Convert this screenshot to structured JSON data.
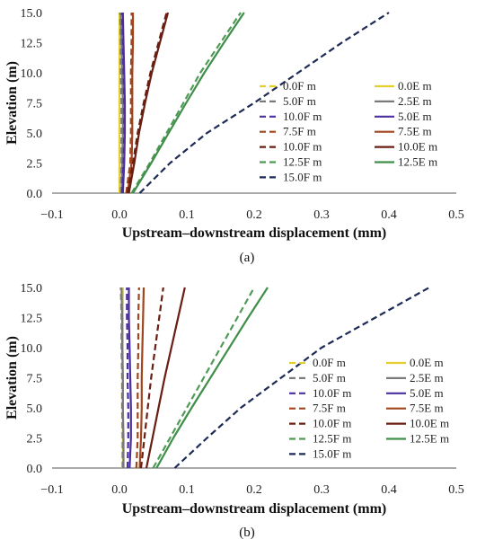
{
  "chart_data": [
    {
      "type": "line",
      "panel_label": "(a)",
      "xlabel": "Upstream–downstream displacement (mm)",
      "ylabel": "Elevation (m)",
      "xlim": [
        -0.1,
        0.5
      ],
      "ylim": [
        0,
        15
      ],
      "xticks": [
        "−0.1",
        "0.0",
        "0.1",
        "0.2",
        "0.3",
        "0.4",
        "0.5"
      ],
      "yticks": [
        "0.0",
        "2.5",
        "5.0",
        "7.5",
        "10.0",
        "12.5",
        "15.0"
      ],
      "legend_position": "right",
      "series": [
        {
          "name": "0.0F m",
          "color": "#e4cf2e",
          "dash": "dashed",
          "x": [
            0.0,
            0.0,
            0.0,
            0.0,
            0.0,
            0.0,
            0.0
          ],
          "y": [
            0,
            2.5,
            5,
            7.5,
            10,
            12.5,
            15
          ]
        },
        {
          "name": "0.0E m",
          "color": "#e4cf2e",
          "dash": "solid",
          "x": [
            0.0,
            0.0,
            0.0,
            0.0,
            0.0,
            0.0,
            0.0
          ],
          "y": [
            0,
            2.5,
            5,
            7.5,
            10,
            12.5,
            15
          ]
        },
        {
          "name": "5.0F m",
          "color": "#7a7a7a",
          "dash": "dashed",
          "x": [
            0.002,
            0.003,
            0.003,
            0.003,
            0.002,
            0.002,
            0.001
          ],
          "y": [
            0,
            2.5,
            5,
            7.5,
            10,
            12.5,
            15
          ]
        },
        {
          "name": "2.5E m",
          "color": "#7a7a7a",
          "dash": "solid",
          "x": [
            0.003,
            0.004,
            0.005,
            0.005,
            0.004,
            0.003,
            0.002
          ],
          "y": [
            0,
            2.5,
            5,
            7.5,
            10,
            12.5,
            15
          ]
        },
        {
          "name": "10.0F m",
          "color": "#4b2f9e",
          "dash": "dashed",
          "x": [
            0.004,
            0.006,
            0.007,
            0.007,
            0.006,
            0.005,
            0.004
          ],
          "y": [
            0,
            2.5,
            5,
            7.5,
            10,
            12.5,
            15
          ]
        },
        {
          "name": "5.0E m",
          "color": "#4b2f9e",
          "dash": "solid",
          "x": [
            0.005,
            0.007,
            0.008,
            0.008,
            0.007,
            0.006,
            0.005
          ],
          "y": [
            0,
            2.5,
            5,
            7.5,
            10,
            12.5,
            15
          ]
        },
        {
          "name": "7.5F m",
          "color": "#a0451d",
          "dash": "dashed",
          "x": [
            0.01,
            0.016,
            0.017,
            0.017,
            0.017,
            0.018,
            0.018
          ],
          "y": [
            0,
            2.5,
            5,
            7.5,
            10,
            12.5,
            15
          ]
        },
        {
          "name": "7.5E m",
          "color": "#a0451d",
          "dash": "solid",
          "x": [
            0.012,
            0.018,
            0.019,
            0.019,
            0.019,
            0.02,
            0.02
          ],
          "y": [
            0,
            2.5,
            5,
            7.5,
            10,
            12.5,
            15
          ]
        },
        {
          "name": "10.0F m",
          "color": "#6a1e12",
          "dash": "dashed",
          "x": [
            0.012,
            0.02,
            0.027,
            0.036,
            0.046,
            0.058,
            0.07
          ],
          "y": [
            0,
            2.5,
            5,
            7.5,
            10,
            12.5,
            15
          ]
        },
        {
          "name": "10.0E m",
          "color": "#6a1e12",
          "dash": "solid",
          "x": [
            0.014,
            0.022,
            0.029,
            0.038,
            0.048,
            0.06,
            0.072
          ],
          "y": [
            0,
            2.5,
            5,
            7.5,
            10,
            12.5,
            15
          ]
        },
        {
          "name": "12.5F m",
          "color": "#4f9a55",
          "dash": "dashed",
          "x": [
            0.018,
            0.045,
            0.07,
            0.095,
            0.12,
            0.15,
            0.18
          ],
          "y": [
            0,
            2.5,
            5,
            7.5,
            10,
            12.5,
            15
          ]
        },
        {
          "name": "12.5E m",
          "color": "#3f8f4a",
          "dash": "solid",
          "x": [
            0.02,
            0.047,
            0.073,
            0.099,
            0.126,
            0.155,
            0.185
          ],
          "y": [
            0,
            2.5,
            5,
            7.5,
            10,
            12.5,
            15
          ]
        },
        {
          "name": "15.0F m",
          "color": "#1c2a55",
          "dash": "dashed",
          "x": [
            0.03,
            0.075,
            0.13,
            0.2,
            0.265,
            0.33,
            0.4
          ],
          "y": [
            0,
            2.5,
            5,
            7.5,
            10,
            12.5,
            15
          ]
        }
      ]
    },
    {
      "type": "line",
      "panel_label": "(b)",
      "xlabel": "Upstream–downstream displacement (mm)",
      "ylabel": "Elevation (m)",
      "xlim": [
        -0.1,
        0.5
      ],
      "ylim": [
        0,
        15
      ],
      "xticks": [
        "−0.1",
        "0.0",
        "0.1",
        "0.2",
        "0.3",
        "0.4",
        "0.5"
      ],
      "yticks": [
        "0.0",
        "2.5",
        "5.0",
        "7.5",
        "10.0",
        "12.5",
        "15.0"
      ],
      "legend_position": "right",
      "series": [
        {
          "name": "0.0F m",
          "color": "#e4cf2e",
          "dash": "dashed",
          "x": [
            0.004,
            0.004,
            0.004,
            0.004,
            0.004,
            0.004,
            0.004
          ],
          "y": [
            0,
            2.5,
            5,
            7.5,
            10,
            12.5,
            15
          ]
        },
        {
          "name": "0.0E m",
          "color": "#e4cf2e",
          "dash": "solid",
          "x": [
            0.005,
            0.005,
            0.005,
            0.005,
            0.005,
            0.005,
            0.005
          ],
          "y": [
            0,
            2.5,
            5,
            7.5,
            10,
            12.5,
            15
          ]
        },
        {
          "name": "5.0F m",
          "color": "#7a7a7a",
          "dash": "dashed",
          "x": [
            0.005,
            0.005,
            0.004,
            0.004,
            0.003,
            0.003,
            0.002
          ],
          "y": [
            0,
            2.5,
            5,
            7.5,
            10,
            12.5,
            15
          ]
        },
        {
          "name": "2.5E m",
          "color": "#7a7a7a",
          "dash": "solid",
          "x": [
            0.006,
            0.006,
            0.005,
            0.005,
            0.004,
            0.004,
            0.003
          ],
          "y": [
            0,
            2.5,
            5,
            7.5,
            10,
            12.5,
            15
          ]
        },
        {
          "name": "10.0F m",
          "color": "#4b2f9e",
          "dash": "dashed",
          "x": [
            0.012,
            0.013,
            0.013,
            0.012,
            0.012,
            0.011,
            0.011
          ],
          "y": [
            0,
            2.5,
            5,
            7.5,
            10,
            12.5,
            15
          ]
        },
        {
          "name": "5.0E m",
          "color": "#4b2f9e",
          "dash": "solid",
          "x": [
            0.015,
            0.017,
            0.017,
            0.016,
            0.015,
            0.014,
            0.014
          ],
          "y": [
            0,
            2.5,
            5,
            7.5,
            10,
            12.5,
            15
          ]
        },
        {
          "name": "7.5F m",
          "color": "#a0451d",
          "dash": "dashed",
          "x": [
            0.025,
            0.027,
            0.027,
            0.027,
            0.028,
            0.028,
            0.029
          ],
          "y": [
            0,
            2.5,
            5,
            7.5,
            10,
            12.5,
            15
          ]
        },
        {
          "name": "7.5E m",
          "color": "#a0451d",
          "dash": "solid",
          "x": [
            0.03,
            0.032,
            0.033,
            0.033,
            0.034,
            0.035,
            0.036
          ],
          "y": [
            0,
            2.5,
            5,
            7.5,
            10,
            12.5,
            15
          ]
        },
        {
          "name": "10.0F m",
          "color": "#6a1e12",
          "dash": "dashed",
          "x": [
            0.032,
            0.037,
            0.042,
            0.047,
            0.053,
            0.059,
            0.065
          ],
          "y": [
            0,
            2.5,
            5,
            7.5,
            10,
            12.5,
            15
          ]
        },
        {
          "name": "10.0E m",
          "color": "#6a1e12",
          "dash": "solid",
          "x": [
            0.04,
            0.049,
            0.058,
            0.067,
            0.077,
            0.087,
            0.097
          ],
          "y": [
            0,
            2.5,
            5,
            7.5,
            10,
            12.5,
            15
          ]
        },
        {
          "name": "12.5F m",
          "color": "#4f9a55",
          "dash": "dashed",
          "x": [
            0.05,
            0.075,
            0.1,
            0.125,
            0.15,
            0.175,
            0.2
          ],
          "y": [
            0,
            2.5,
            5,
            7.5,
            10,
            12.5,
            15
          ]
        },
        {
          "name": "12.5E m",
          "color": "#3f8f4a",
          "dash": "solid",
          "x": [
            0.055,
            0.08,
            0.107,
            0.135,
            0.163,
            0.191,
            0.22
          ],
          "y": [
            0,
            2.5,
            5,
            7.5,
            10,
            12.5,
            15
          ]
        },
        {
          "name": "15.0F m",
          "color": "#1c2a55",
          "dash": "dashed",
          "x": [
            0.082,
            0.13,
            0.18,
            0.24,
            0.3,
            0.38,
            0.46
          ],
          "y": [
            0,
            2.5,
            5,
            7.5,
            10,
            12.5,
            15
          ]
        }
      ]
    }
  ]
}
